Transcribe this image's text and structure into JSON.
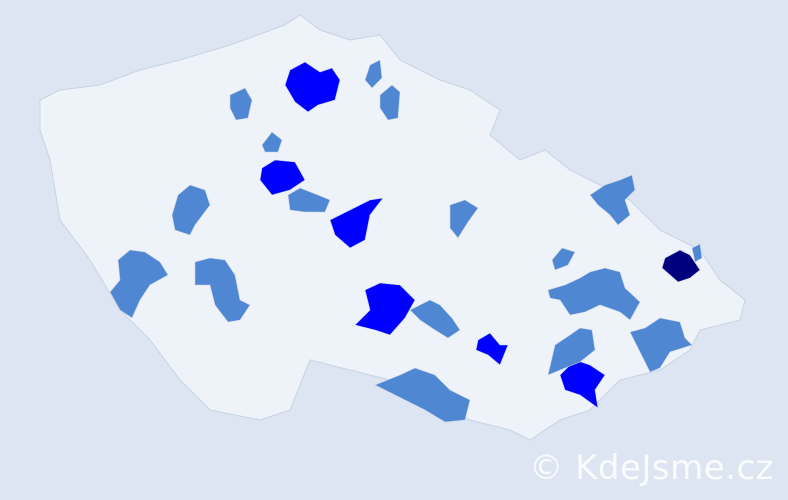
{
  "watermark": "© KdeJsme.cz",
  "colors": {
    "background": "#dce5f1",
    "region_default": "#eef2f9",
    "region_border": "#c8d3e6",
    "level_low": "#5087d3",
    "level_mid": "#0000ff",
    "level_high": "#00007f"
  },
  "regions": [
    {
      "level": "mid"
    },
    {
      "level": "mid"
    },
    {
      "level": "mid"
    },
    {
      "level": "mid"
    },
    {
      "level": "mid"
    },
    {
      "level": "mid"
    },
    {
      "level": "high"
    },
    {
      "level": "low"
    },
    {
      "level": "low"
    },
    {
      "level": "low"
    },
    {
      "level": "low"
    },
    {
      "level": "low"
    },
    {
      "level": "low"
    },
    {
      "level": "low"
    },
    {
      "level": "low"
    },
    {
      "level": "low"
    },
    {
      "level": "low"
    },
    {
      "level": "low"
    },
    {
      "level": "low"
    },
    {
      "level": "low"
    },
    {
      "level": "low"
    },
    {
      "level": "low"
    },
    {
      "level": "low"
    },
    {
      "level": "low"
    }
  ]
}
